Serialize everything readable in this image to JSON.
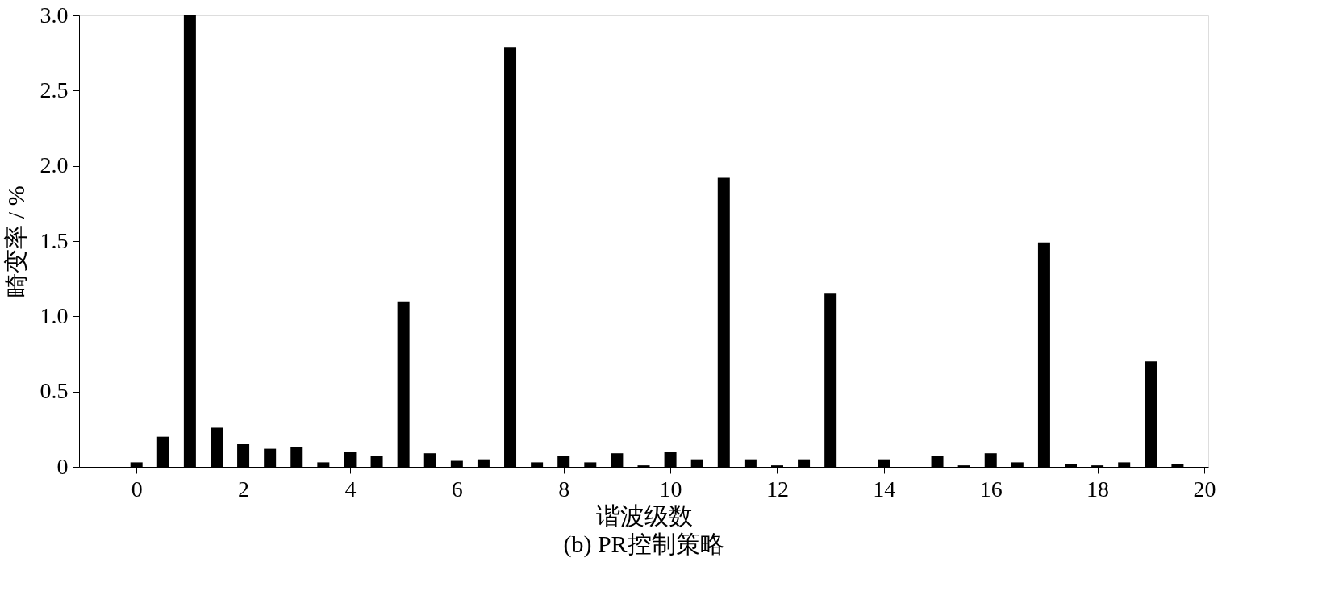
{
  "chart_data": {
    "type": "bar",
    "title": "(b)  PR控制策略",
    "xlabel": "谐波级数",
    "ylabel": "畸变率 / %",
    "x": [
      0,
      0.5,
      1,
      1.5,
      2,
      2.5,
      3,
      3.5,
      4,
      4.5,
      5,
      5.5,
      6,
      6.5,
      7,
      7.5,
      8,
      8.5,
      9,
      9.5,
      10,
      10.5,
      11,
      11.5,
      12,
      12.5,
      13,
      13.5,
      14,
      14.5,
      15,
      15.5,
      16,
      16.5,
      17,
      17.5,
      18,
      18.5,
      19,
      19.5
    ],
    "values": [
      0.03,
      0.2,
      3.0,
      0.26,
      0.15,
      0.12,
      0.13,
      0.03,
      0.1,
      0.07,
      1.1,
      0.09,
      0.04,
      0.05,
      2.79,
      0.03,
      0.07,
      0.03,
      0.09,
      0.01,
      0.1,
      0.05,
      1.92,
      0.05,
      0.01,
      0.05,
      1.15,
      0,
      0.05,
      0,
      0.07,
      0.01,
      0.09,
      0.03,
      1.49,
      0.02,
      0.01,
      0.03,
      0.7,
      0.02
    ],
    "color": "#000000",
    "xlim": [
      -1,
      20
    ],
    "xticks": [
      0,
      2,
      4,
      6,
      8,
      10,
      12,
      14,
      16,
      18,
      20
    ],
    "ylim": [
      0,
      3
    ],
    "yticks": [
      0,
      0.5,
      {
        "value": 1,
        "label": "1.0"
      },
      1.5,
      {
        "value": 2,
        "label": "2.0"
      },
      2.5,
      {
        "value": 3,
        "label": "3.0"
      }
    ],
    "grid": false
  }
}
